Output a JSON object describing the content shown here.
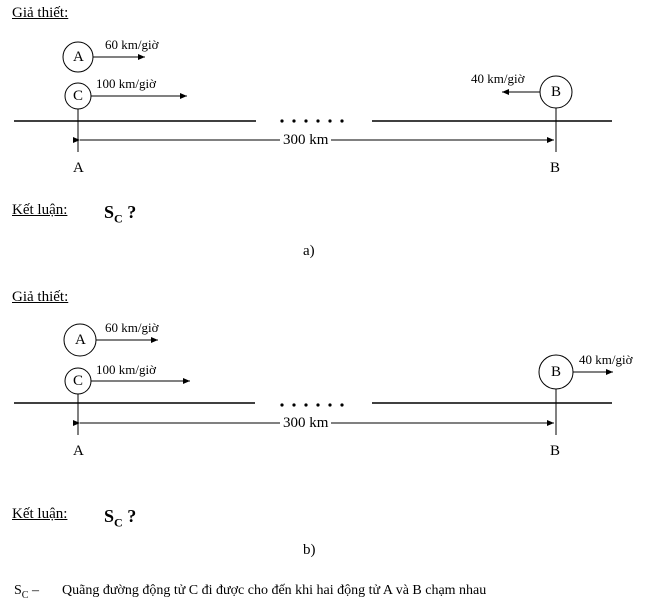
{
  "diagrams": [
    {
      "given_label": "Giả thiết:",
      "vehicles": [
        {
          "name": "A",
          "speed": "60 km/giờ",
          "direction": "right"
        },
        {
          "name": "C",
          "speed": "100 km/giờ",
          "direction": "right"
        },
        {
          "name": "B",
          "speed": "40 km/giờ",
          "direction": "left"
        }
      ],
      "distance": "300 km",
      "point_left": "A",
      "point_right": "B",
      "conclusion_label": "Kết luận:",
      "conclusion_symbol": "S",
      "conclusion_sub": "C",
      "conclusion_q": " ?",
      "caption": "a)"
    },
    {
      "given_label": "Giả thiết:",
      "vehicles": [
        {
          "name": "A",
          "speed": "60 km/giờ",
          "direction": "right"
        },
        {
          "name": "C",
          "speed": "100 km/giờ",
          "direction": "right"
        },
        {
          "name": "B",
          "speed": "40 km/giờ",
          "direction": "right"
        }
      ],
      "distance": "300 km",
      "point_left": "A",
      "point_right": "B",
      "conclusion_label": "Kết luận:",
      "conclusion_symbol": "S",
      "conclusion_sub": "C",
      "conclusion_q": " ?",
      "caption": "b)"
    }
  ],
  "footnote": {
    "symbol": "S",
    "sub": "C",
    "dash": " –",
    "text": "Quãng đường động tử C đi được cho đến khi hai động tử A và B chạm nhau"
  }
}
